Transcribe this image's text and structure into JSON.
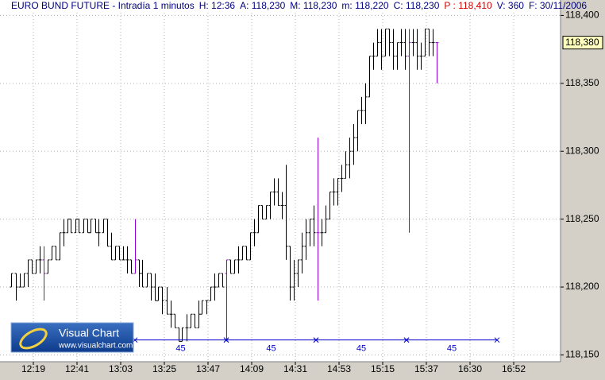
{
  "chart_data": {
    "type": "ohlc",
    "info": [
      {
        "text": "EURO BUND FUTURE - Intradía 1 minutos",
        "color": "#000080"
      },
      {
        "text": "H: 12:36",
        "color": "#000080"
      },
      {
        "text": "A: 118,230",
        "color": "#000080"
      },
      {
        "text": "M: 118,230",
        "color": "#000080"
      },
      {
        "text": "m: 118,220",
        "color": "#000080"
      },
      {
        "text": "C: 118,230",
        "color": "#000080"
      },
      {
        "text": "P : 118,410",
        "color": "#d00000"
      },
      {
        "text": "V: 360",
        "color": "#000080"
      },
      {
        "text": "F: 30/11/2006",
        "color": "#000080"
      }
    ],
    "color": "#000000",
    "highlight": {
      "indices": [
        8,
        31,
        54,
        77,
        100,
        107
      ],
      "color": "#9400d3"
    },
    "x": [
      8,
      10,
      12,
      14,
      16,
      18,
      20,
      22,
      24,
      26,
      28,
      30,
      32,
      34,
      36,
      38,
      40,
      42,
      44,
      46,
      48,
      50,
      52,
      54,
      56,
      58,
      60,
      62,
      64,
      66,
      68,
      70,
      72,
      74,
      76,
      78,
      80,
      82,
      84,
      86,
      88,
      90,
      92,
      94,
      96,
      98,
      100,
      102,
      104,
      106,
      108,
      110,
      112,
      114,
      116,
      118,
      120,
      122,
      124,
      126,
      128,
      130,
      132,
      134,
      136,
      138,
      140,
      142,
      144,
      146,
      148,
      150,
      152,
      154,
      156,
      158,
      160,
      162,
      164,
      166,
      168,
      170,
      172,
      174,
      176,
      178,
      180,
      182,
      184,
      186,
      188,
      190,
      192,
      194,
      196,
      198,
      200,
      202,
      204,
      206,
      208,
      210,
      212,
      214,
      216,
      218,
      220,
      222
    ],
    "ohlc": [
      [
        118.2,
        118.21,
        118.2,
        118.21
      ],
      [
        118.21,
        118.21,
        118.19,
        118.2
      ],
      [
        118.2,
        118.21,
        118.2,
        118.2
      ],
      [
        118.2,
        118.21,
        118.2,
        118.21
      ],
      [
        118.21,
        118.22,
        118.2,
        118.22
      ],
      [
        118.22,
        118.22,
        118.21,
        118.21
      ],
      [
        118.21,
        118.22,
        118.21,
        118.22
      ],
      [
        118.22,
        118.23,
        118.21,
        118.22
      ],
      [
        118.22,
        118.23,
        118.19,
        118.21
      ],
      [
        118.21,
        118.22,
        118.21,
        118.22
      ],
      [
        118.22,
        118.23,
        118.22,
        118.23
      ],
      [
        118.23,
        118.23,
        118.22,
        118.22
      ],
      [
        118.22,
        118.24,
        118.22,
        118.24
      ],
      [
        118.24,
        118.25,
        118.23,
        118.24
      ],
      [
        118.24,
        118.25,
        118.24,
        118.25
      ],
      [
        118.25,
        118.25,
        118.24,
        118.24
      ],
      [
        118.24,
        118.25,
        118.24,
        118.25
      ],
      [
        118.25,
        118.25,
        118.24,
        118.24
      ],
      [
        118.24,
        118.25,
        118.24,
        118.25
      ],
      [
        118.25,
        118.25,
        118.24,
        118.24
      ],
      [
        118.24,
        118.25,
        118.24,
        118.25
      ],
      [
        118.25,
        118.25,
        118.24,
        118.24
      ],
      [
        118.24,
        118.25,
        118.23,
        118.24
      ],
      [
        118.24,
        118.25,
        118.24,
        118.25
      ],
      [
        118.25,
        118.25,
        118.23,
        118.23
      ],
      [
        118.23,
        118.24,
        118.22,
        118.22
      ],
      [
        118.22,
        118.23,
        118.22,
        118.23
      ],
      [
        118.23,
        118.23,
        118.22,
        118.22
      ],
      [
        118.22,
        118.23,
        118.22,
        118.22
      ],
      [
        118.22,
        118.23,
        118.21,
        118.22
      ],
      [
        118.22,
        118.22,
        118.21,
        118.21
      ],
      [
        118.21,
        118.25,
        118.21,
        118.22
      ],
      [
        118.22,
        118.22,
        118.2,
        118.21
      ],
      [
        118.21,
        118.22,
        118.2,
        118.2
      ],
      [
        118.2,
        118.21,
        118.2,
        118.21
      ],
      [
        118.21,
        118.21,
        118.19,
        118.2
      ],
      [
        118.2,
        118.21,
        118.19,
        118.19
      ],
      [
        118.19,
        118.2,
        118.19,
        118.2
      ],
      [
        118.2,
        118.2,
        118.18,
        118.19
      ],
      [
        118.19,
        118.2,
        118.18,
        118.18
      ],
      [
        118.18,
        118.19,
        118.17,
        118.18
      ],
      [
        118.18,
        118.18,
        118.17,
        118.17
      ],
      [
        118.17,
        118.17,
        118.16,
        118.16
      ],
      [
        118.16,
        118.17,
        118.16,
        118.17
      ],
      [
        118.17,
        118.18,
        118.16,
        118.17
      ],
      [
        118.17,
        118.18,
        118.17,
        118.18
      ],
      [
        118.18,
        118.18,
        118.17,
        118.17
      ],
      [
        118.17,
        118.19,
        118.17,
        118.18
      ],
      [
        118.18,
        118.19,
        118.18,
        118.19
      ],
      [
        118.19,
        118.19,
        118.18,
        118.19
      ],
      [
        118.19,
        118.2,
        118.19,
        118.2
      ],
      [
        118.2,
        118.21,
        118.19,
        118.2
      ],
      [
        118.2,
        118.21,
        118.2,
        118.21
      ],
      [
        118.21,
        118.21,
        118.2,
        118.2
      ],
      [
        118.21,
        118.22,
        118.16,
        118.22
      ],
      [
        118.22,
        118.22,
        118.21,
        118.21
      ],
      [
        118.21,
        118.22,
        118.21,
        118.22
      ],
      [
        118.22,
        118.23,
        118.21,
        118.22
      ],
      [
        118.22,
        118.23,
        118.22,
        118.23
      ],
      [
        118.23,
        118.23,
        118.22,
        118.22
      ],
      [
        118.22,
        118.24,
        118.22,
        118.24
      ],
      [
        118.24,
        118.25,
        118.23,
        118.24
      ],
      [
        118.24,
        118.26,
        118.24,
        118.26
      ],
      [
        118.26,
        118.26,
        118.25,
        118.25
      ],
      [
        118.25,
        118.26,
        118.25,
        118.26
      ],
      [
        118.26,
        118.27,
        118.25,
        118.27
      ],
      [
        118.27,
        118.28,
        118.26,
        118.27
      ],
      [
        118.27,
        118.28,
        118.26,
        118.26
      ],
      [
        118.26,
        118.27,
        118.25,
        118.26
      ],
      [
        118.26,
        118.29,
        118.22,
        118.23
      ],
      [
        118.23,
        118.23,
        118.19,
        118.2
      ],
      [
        118.2,
        118.22,
        118.19,
        118.21
      ],
      [
        118.21,
        118.22,
        118.2,
        118.22
      ],
      [
        118.22,
        118.24,
        118.21,
        118.23
      ],
      [
        118.23,
        118.25,
        118.22,
        118.24
      ],
      [
        118.24,
        118.25,
        118.23,
        118.25
      ],
      [
        118.25,
        118.26,
        118.23,
        118.24
      ],
      [
        118.24,
        118.31,
        118.19,
        118.24
      ],
      [
        118.24,
        118.25,
        118.23,
        118.24
      ],
      [
        118.24,
        118.26,
        118.24,
        118.25
      ],
      [
        118.25,
        118.27,
        118.25,
        118.27
      ],
      [
        118.27,
        118.28,
        118.26,
        118.27
      ],
      [
        118.27,
        118.28,
        118.26,
        118.28
      ],
      [
        118.28,
        118.29,
        118.27,
        118.28
      ],
      [
        118.28,
        118.3,
        118.28,
        118.29
      ],
      [
        118.29,
        118.31,
        118.28,
        118.3
      ],
      [
        118.3,
        118.32,
        118.29,
        118.31
      ],
      [
        118.31,
        118.33,
        118.3,
        118.33
      ],
      [
        118.33,
        118.34,
        118.32,
        118.33
      ],
      [
        118.33,
        118.35,
        118.32,
        118.34
      ],
      [
        118.34,
        118.37,
        118.34,
        118.37
      ],
      [
        118.37,
        118.38,
        118.36,
        118.37
      ],
      [
        118.37,
        118.39,
        118.37,
        118.38
      ],
      [
        118.38,
        118.39,
        118.36,
        118.37
      ],
      [
        118.37,
        118.39,
        118.37,
        118.39
      ],
      [
        118.39,
        118.39,
        118.37,
        118.38
      ],
      [
        118.38,
        118.39,
        118.36,
        118.37
      ],
      [
        118.37,
        118.38,
        118.36,
        118.38
      ],
      [
        118.38,
        118.39,
        118.37,
        118.38
      ],
      [
        118.38,
        118.39,
        118.36,
        118.37
      ],
      [
        118.37,
        118.39,
        118.24,
        118.38
      ],
      [
        118.38,
        118.39,
        118.37,
        118.38
      ],
      [
        118.38,
        118.39,
        118.36,
        118.37
      ],
      [
        118.37,
        118.38,
        118.36,
        118.37
      ],
      [
        118.37,
        118.39,
        118.37,
        118.39
      ],
      [
        118.39,
        118.39,
        118.37,
        118.38
      ],
      [
        118.38,
        118.39,
        118.37,
        118.38
      ],
      [
        118.38,
        118.38,
        118.35,
        118.38
      ]
    ],
    "xlim": [
      2.2,
      284.2
    ],
    "xticks": [
      {
        "value": 19,
        "label": "12:19"
      },
      {
        "value": 41,
        "label": "12:41"
      },
      {
        "value": 63,
        "label": "13:03"
      },
      {
        "value": 85,
        "label": "13:25"
      },
      {
        "value": 107,
        "label": "13:47"
      },
      {
        "value": 129,
        "label": "14:09"
      },
      {
        "value": 151,
        "label": "14:31"
      },
      {
        "value": 173,
        "label": "14:53"
      },
      {
        "value": 195,
        "label": "15:15"
      },
      {
        "value": 217,
        "label": "15:37"
      },
      {
        "value": 239,
        "label": "16:30"
      },
      {
        "value": 261,
        "label": "16:52"
      }
    ],
    "ylim": [
      118.145,
      118.402
    ],
    "yticks": [
      {
        "value": 118.15,
        "label": "118,150"
      },
      {
        "value": 118.2,
        "label": "118,200"
      },
      {
        "value": 118.25,
        "label": "118,250"
      },
      {
        "value": 118.3,
        "label": "118,300"
      },
      {
        "value": 118.35,
        "label": "118,350"
      },
      {
        "value": 118.4,
        "label": "118,400"
      }
    ],
    "grid": true,
    "last_price": {
      "value": 118.38,
      "label": "118,380"
    },
    "rulers": {
      "level": 118.161,
      "color": "#0000cc",
      "segments": [
        {
          "from": 70.2,
          "to": 116.2,
          "label": 45
        },
        {
          "from": 116.2,
          "to": 161.4,
          "label": 45
        },
        {
          "from": 161.4,
          "to": 207,
          "label": 45
        },
        {
          "from": 207,
          "to": 252.6,
          "label": 45
        }
      ]
    }
  },
  "logo": {
    "title": "Visual Chart",
    "url": "www.visualchart.com"
  }
}
